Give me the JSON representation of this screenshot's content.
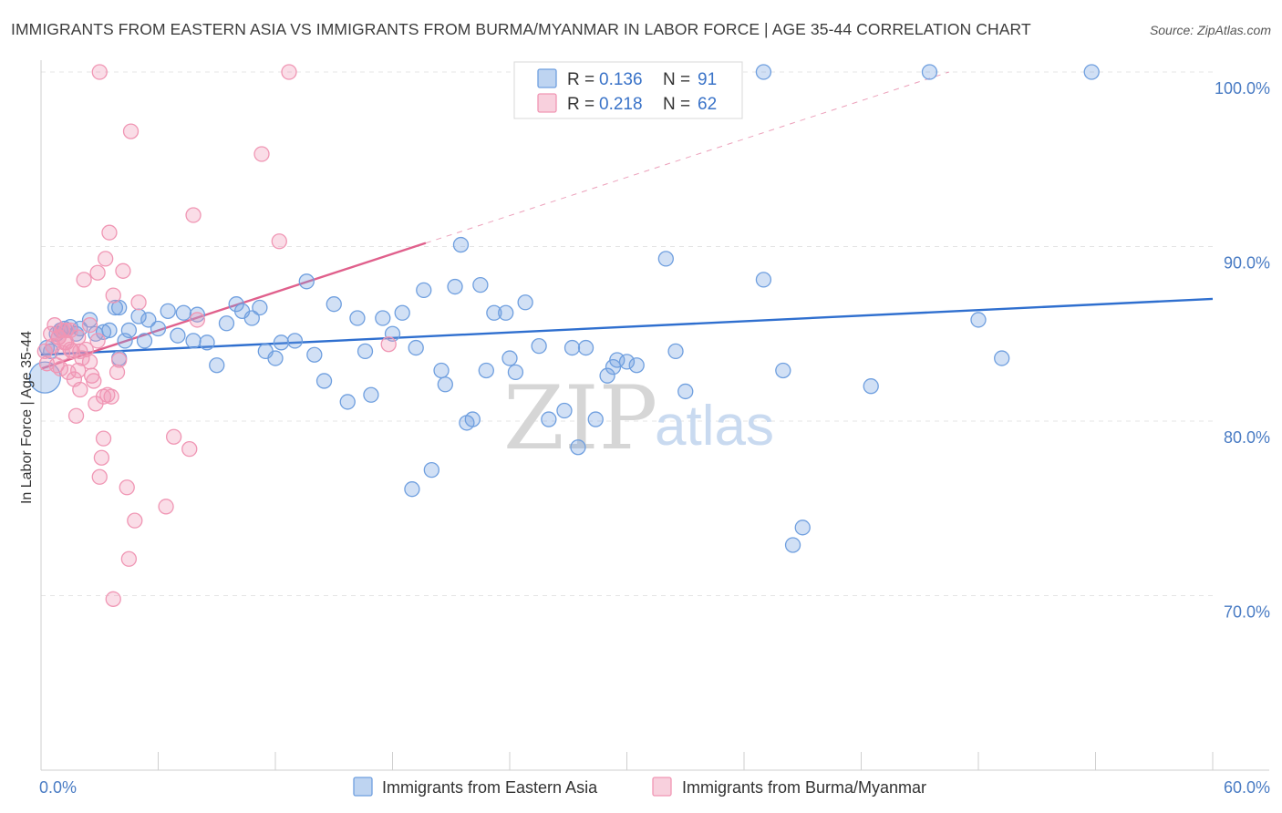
{
  "title": "IMMIGRANTS FROM EASTERN ASIA VS IMMIGRANTS FROM BURMA/MYANMAR IN LABOR FORCE | AGE 35-44 CORRELATION CHART",
  "source": "Source: ZipAtlas.com",
  "watermark": {
    "zip": "ZIP",
    "atlas": "atlas"
  },
  "legend": {
    "r_label": "R =",
    "n_label": "N =",
    "entries": [
      {
        "r": "0.136",
        "n": "91",
        "color": "#6f9fdf"
      },
      {
        "r": "0.218",
        "n": "62",
        "color": "#f096b4"
      }
    ]
  },
  "bottom_legend": [
    {
      "label": "Immigrants from Eastern Asia",
      "color": "#6f9fdf"
    },
    {
      "label": "Immigrants from Burma/Myanmar",
      "color": "#f096b4"
    }
  ],
  "chart_data": {
    "type": "scatter",
    "xlabel": "",
    "ylabel": "In Labor Force | Age 35-44",
    "xlim": [
      0,
      60
    ],
    "ylim": [
      60,
      100
    ],
    "x_tick_labels": [
      "0.0%",
      "60.0%"
    ],
    "y_ticks": [
      {
        "value": 100,
        "label": "100.0%"
      },
      {
        "value": 90,
        "label": "90.0%"
      },
      {
        "value": 80,
        "label": "80.0%"
      },
      {
        "value": 70,
        "label": "70.0%"
      }
    ],
    "grid": true,
    "legend_position": "top-center",
    "series": [
      {
        "name": "Immigrants from Eastern Asia",
        "color": "#6f9fdf",
        "line_color": "#2f6fcf",
        "trend": {
          "x": [
            0,
            60
          ],
          "y": [
            83.8,
            87.0
          ]
        },
        "points": [
          [
            0.2,
            82.5
          ],
          [
            0.3,
            84.2
          ],
          [
            0.5,
            84.0
          ],
          [
            0.8,
            85.0
          ],
          [
            1.0,
            85.2
          ],
          [
            1.2,
            85.3
          ],
          [
            1.5,
            85.4
          ],
          [
            1.8,
            85.0
          ],
          [
            2.0,
            85.3
          ],
          [
            2.5,
            85.8
          ],
          [
            3.2,
            85.1
          ],
          [
            3.5,
            85.2
          ],
          [
            3.8,
            86.5
          ],
          [
            4.0,
            83.6
          ],
          [
            4.3,
            84.6
          ],
          [
            4.5,
            85.2
          ],
          [
            5.0,
            86.0
          ],
          [
            5.3,
            84.6
          ],
          [
            5.5,
            85.8
          ],
          [
            6.0,
            85.3
          ],
          [
            6.5,
            86.3
          ],
          [
            7.0,
            84.9
          ],
          [
            7.3,
            86.2
          ],
          [
            7.8,
            84.6
          ],
          [
            8.0,
            86.1
          ],
          [
            8.5,
            84.5
          ],
          [
            9.0,
            83.2
          ],
          [
            9.5,
            85.6
          ],
          [
            10.0,
            86.7
          ],
          [
            10.3,
            86.3
          ],
          [
            10.8,
            85.9
          ],
          [
            11.2,
            86.5
          ],
          [
            11.5,
            84.0
          ],
          [
            12.0,
            83.6
          ],
          [
            12.3,
            84.5
          ],
          [
            13.0,
            84.6
          ],
          [
            13.6,
            88.0
          ],
          [
            14.0,
            83.8
          ],
          [
            14.5,
            82.3
          ],
          [
            15.0,
            86.7
          ],
          [
            15.7,
            81.1
          ],
          [
            16.2,
            85.9
          ],
          [
            16.6,
            84.0
          ],
          [
            16.9,
            81.5
          ],
          [
            17.5,
            85.9
          ],
          [
            18.0,
            85.0
          ],
          [
            18.5,
            86.2
          ],
          [
            19.2,
            84.2
          ],
          [
            19.6,
            87.5
          ],
          [
            20.5,
            82.9
          ],
          [
            20.7,
            82.1
          ],
          [
            21.2,
            87.7
          ],
          [
            21.8,
            79.9
          ],
          [
            22.1,
            80.1
          ],
          [
            22.5,
            87.8
          ],
          [
            22.8,
            82.9
          ],
          [
            23.2,
            86.2
          ],
          [
            23.8,
            86.2
          ],
          [
            24.0,
            83.6
          ],
          [
            24.3,
            82.8
          ],
          [
            24.8,
            86.8
          ],
          [
            25.5,
            84.3
          ],
          [
            26.0,
            80.1
          ],
          [
            26.8,
            80.6
          ],
          [
            27.2,
            84.2
          ],
          [
            27.5,
            78.5
          ],
          [
            27.9,
            84.2
          ],
          [
            28.4,
            80.1
          ],
          [
            29.0,
            82.6
          ],
          [
            29.3,
            83.1
          ],
          [
            29.5,
            83.5
          ],
          [
            30.0,
            83.4
          ],
          [
            30.5,
            83.2
          ],
          [
            32.0,
            89.3
          ],
          [
            32.5,
            84.0
          ],
          [
            33.0,
            81.7
          ],
          [
            37.0,
            88.1
          ],
          [
            38.0,
            82.9
          ],
          [
            38.5,
            72.9
          ],
          [
            39.0,
            73.9
          ],
          [
            42.5,
            82.0
          ],
          [
            48.0,
            85.8
          ],
          [
            49.2,
            83.6
          ],
          [
            19.0,
            76.1
          ],
          [
            20.0,
            77.2
          ],
          [
            21.5,
            90.1
          ],
          [
            37.0,
            100.0
          ],
          [
            45.5,
            100.0
          ],
          [
            53.8,
            100.0
          ],
          [
            4.0,
            86.5
          ],
          [
            2.8,
            85.0
          ]
        ]
      },
      {
        "name": "Immigrants from Burma/Myanmar",
        "color": "#f096b4",
        "line_color": "#e0608c",
        "trend": {
          "x": [
            0,
            19.7
          ],
          "y": [
            83.0,
            90.2
          ]
        },
        "trend_dashed": {
          "x": [
            19.7,
            46.5
          ],
          "y": [
            90.2,
            100.0
          ]
        },
        "points": [
          [
            0.2,
            84.0
          ],
          [
            0.3,
            83.3
          ],
          [
            0.5,
            85.0
          ],
          [
            0.6,
            84.3
          ],
          [
            0.7,
            85.5
          ],
          [
            0.8,
            83.2
          ],
          [
            0.9,
            84.8
          ],
          [
            1.0,
            83.0
          ],
          [
            1.1,
            85.2
          ],
          [
            1.2,
            84.5
          ],
          [
            1.3,
            84.5
          ],
          [
            1.4,
            82.8
          ],
          [
            1.5,
            84.1
          ],
          [
            1.6,
            84.0
          ],
          [
            1.7,
            82.4
          ],
          [
            1.8,
            80.3
          ],
          [
            1.9,
            84.8
          ],
          [
            2.0,
            81.8
          ],
          [
            2.1,
            83.6
          ],
          [
            2.2,
            88.1
          ],
          [
            2.3,
            84.1
          ],
          [
            2.5,
            85.5
          ],
          [
            2.6,
            82.6
          ],
          [
            2.7,
            82.3
          ],
          [
            2.8,
            81.0
          ],
          [
            2.9,
            88.5
          ],
          [
            3.0,
            76.8
          ],
          [
            3.1,
            77.9
          ],
          [
            3.2,
            79.0
          ],
          [
            3.3,
            89.3
          ],
          [
            3.4,
            81.5
          ],
          [
            3.5,
            90.8
          ],
          [
            3.6,
            81.4
          ],
          [
            3.7,
            87.2
          ],
          [
            3.9,
            82.8
          ],
          [
            4.0,
            83.5
          ],
          [
            4.2,
            88.6
          ],
          [
            4.4,
            76.2
          ],
          [
            4.6,
            96.6
          ],
          [
            4.8,
            74.3
          ],
          [
            5.0,
            86.8
          ],
          [
            6.4,
            75.1
          ],
          [
            6.8,
            79.1
          ],
          [
            7.6,
            78.4
          ],
          [
            7.8,
            91.8
          ],
          [
            8.0,
            85.8
          ],
          [
            11.3,
            95.3
          ],
          [
            12.2,
            90.3
          ],
          [
            12.7,
            100.0
          ],
          [
            3.0,
            100.0
          ],
          [
            17.8,
            84.4
          ],
          [
            3.7,
            69.8
          ],
          [
            4.5,
            72.1
          ],
          [
            3.2,
            81.4
          ],
          [
            2.5,
            83.4
          ],
          [
            1.5,
            85.2
          ],
          [
            0.9,
            84.8
          ],
          [
            1.1,
            83.9
          ],
          [
            1.3,
            85.2
          ],
          [
            2.0,
            84.0
          ],
          [
            2.9,
            84.6
          ],
          [
            1.9,
            82.9
          ]
        ]
      }
    ]
  }
}
